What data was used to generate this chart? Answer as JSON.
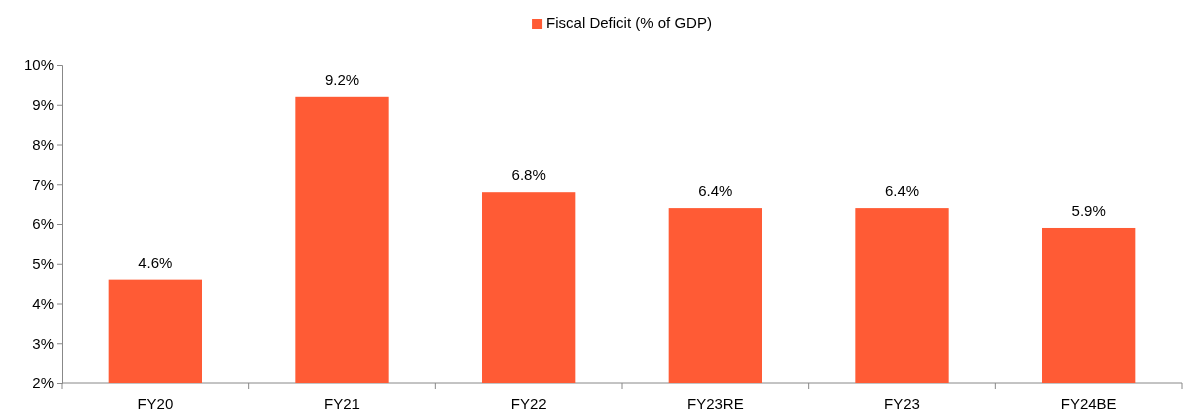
{
  "chart_data": {
    "type": "bar",
    "categories": [
      "FY20",
      "FY21",
      "FY22",
      "FY23RE",
      "FY23",
      "FY24BE"
    ],
    "series": [
      {
        "name": "Fiscal Deficit (% of GDP)",
        "color": "#ff5b35",
        "values": [
          4.6,
          9.2,
          6.8,
          6.4,
          6.4,
          5.9
        ],
        "value_labels": [
          "4.6%",
          "9.2%",
          "6.8%",
          "6.4%",
          "6.4%",
          "5.9%"
        ]
      }
    ],
    "ylim": [
      2,
      10
    ],
    "yticks": [
      {
        "value": 2,
        "label": "2%"
      },
      {
        "value": 3,
        "label": "3%"
      },
      {
        "value": 4,
        "label": "4%"
      },
      {
        "value": 5,
        "label": "5%"
      },
      {
        "value": 6,
        "label": "6%"
      },
      {
        "value": 7,
        "label": "7%"
      },
      {
        "value": 8,
        "label": "8%"
      },
      {
        "value": 9,
        "label": "9%"
      },
      {
        "value": 10,
        "label": "10%"
      }
    ],
    "legend": "top",
    "grid": false
  }
}
